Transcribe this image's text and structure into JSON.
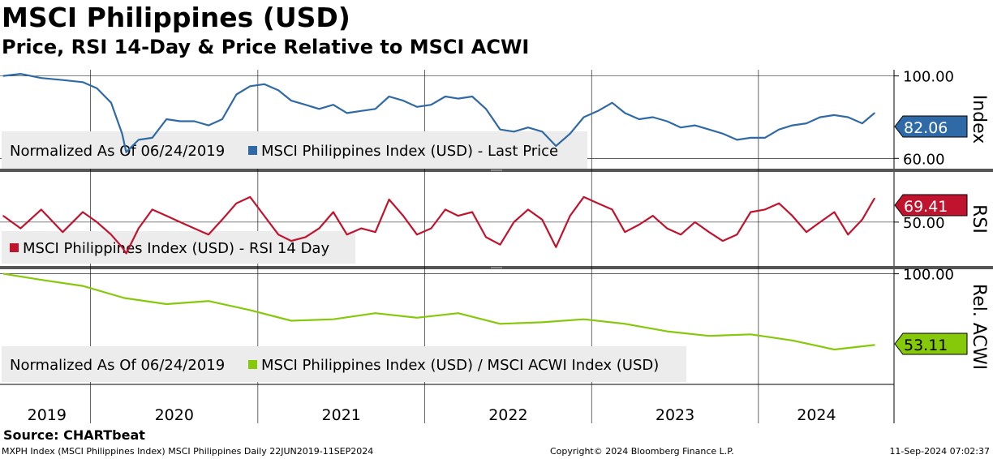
{
  "header": {
    "title": "MSCI Philippines (USD)",
    "subtitle": "Price, RSI 14-Day & Price Relative to MSCI ACWI"
  },
  "footer": {
    "source": "Source: CHARTbeat",
    "description": "MXPH Index (MSCI Philippines Index) MSCI Philippines  Daily 22JUN2019-11SEP2024",
    "copyright": "Copyright© 2024 Bloomberg Finance L.P.",
    "timestamp": "11-Sep-2024 07:02:37"
  },
  "colors": {
    "price": "#2f6aa6",
    "rsi": "#c0142e",
    "relative": "#86c80a",
    "grid": "#000000",
    "legend_bg": "#ececec",
    "panel_divider": "#555555"
  },
  "chart_data": [
    {
      "type": "line",
      "panel": "price",
      "axis_title": "Index",
      "legend_note": "Normalized As Of 06/24/2019",
      "series": [
        {
          "name": "MSCI Philippines Index (USD) - Last Price",
          "last_value_label": "82.06",
          "x": [
            "2019-06-24",
            "2019-08-01",
            "2019-09-15",
            "2019-11-01",
            "2019-12-15",
            "2020-01-15",
            "2020-02-15",
            "2020-03-10",
            "2020-03-19",
            "2020-04-15",
            "2020-05-15",
            "2020-06-15",
            "2020-07-15",
            "2020-08-15",
            "2020-09-15",
            "2020-10-15",
            "2020-11-15",
            "2020-12-15",
            "2021-01-15",
            "2021-02-15",
            "2021-03-15",
            "2021-04-15",
            "2021-05-15",
            "2021-06-15",
            "2021-07-15",
            "2021-08-15",
            "2021-09-15",
            "2021-10-15",
            "2021-11-15",
            "2021-12-15",
            "2022-01-15",
            "2022-02-15",
            "2022-03-15",
            "2022-04-15",
            "2022-05-15",
            "2022-06-15",
            "2022-07-15",
            "2022-08-15",
            "2022-09-15",
            "2022-10-15",
            "2022-11-15",
            "2022-12-15",
            "2023-01-15",
            "2023-02-15",
            "2023-03-15",
            "2023-04-15",
            "2023-05-15",
            "2023-06-15",
            "2023-07-15",
            "2023-08-15",
            "2023-09-15",
            "2023-10-15",
            "2023-11-15",
            "2023-12-15",
            "2024-01-15",
            "2024-02-15",
            "2024-03-15",
            "2024-04-15",
            "2024-05-15",
            "2024-06-15",
            "2024-07-15",
            "2024-08-15",
            "2024-09-11"
          ],
          "y": [
            100,
            101,
            99,
            98,
            97,
            94,
            87,
            72,
            63,
            69,
            70,
            79,
            78,
            78,
            76,
            79,
            91,
            95,
            96,
            93,
            88,
            86,
            84,
            86,
            82,
            83,
            84,
            90,
            88,
            85,
            86,
            90,
            89,
            90,
            84,
            74,
            73,
            75,
            73,
            66,
            72,
            80,
            83,
            87,
            82,
            79,
            80,
            78,
            75,
            76,
            74,
            72,
            69,
            70,
            70,
            74,
            76,
            77,
            80,
            81,
            80,
            77,
            82
          ]
        }
      ],
      "ylim": [
        55,
        103
      ],
      "y_ticks": [
        100,
        60
      ],
      "y_tick_labels": [
        "100.00",
        "60.00"
      ]
    },
    {
      "type": "line",
      "panel": "rsi",
      "axis_title": "RSI",
      "series": [
        {
          "name": "MSCI Philippines Index (USD) - RSI 14 Day",
          "last_value_label": "69.41",
          "x": [
            "2019-06-24",
            "2019-08-01",
            "2019-09-15",
            "2019-11-01",
            "2019-12-15",
            "2020-01-15",
            "2020-02-15",
            "2020-03-10",
            "2020-03-19",
            "2020-04-15",
            "2020-05-15",
            "2020-06-15",
            "2020-07-15",
            "2020-08-15",
            "2020-09-15",
            "2020-10-15",
            "2020-11-15",
            "2020-12-15",
            "2021-01-15",
            "2021-02-15",
            "2021-03-15",
            "2021-04-15",
            "2021-05-15",
            "2021-06-15",
            "2021-07-15",
            "2021-08-15",
            "2021-09-15",
            "2021-10-15",
            "2021-11-15",
            "2021-12-15",
            "2022-01-15",
            "2022-02-15",
            "2022-03-15",
            "2022-04-15",
            "2022-05-15",
            "2022-06-15",
            "2022-07-15",
            "2022-08-15",
            "2022-09-15",
            "2022-10-15",
            "2022-11-15",
            "2022-12-15",
            "2023-01-15",
            "2023-02-15",
            "2023-03-15",
            "2023-04-15",
            "2023-05-15",
            "2023-06-15",
            "2023-07-15",
            "2023-08-15",
            "2023-09-15",
            "2023-10-15",
            "2023-11-15",
            "2023-12-15",
            "2024-01-15",
            "2024-02-15",
            "2024-03-15",
            "2024-04-15",
            "2024-05-15",
            "2024-06-15",
            "2024-07-15",
            "2024-08-15",
            "2024-09-11"
          ],
          "y": [
            55,
            45,
            60,
            42,
            58,
            50,
            40,
            30,
            25,
            45,
            60,
            55,
            50,
            45,
            40,
            52,
            65,
            70,
            55,
            40,
            35,
            38,
            45,
            58,
            40,
            45,
            42,
            68,
            55,
            40,
            45,
            60,
            55,
            58,
            38,
            32,
            50,
            60,
            52,
            30,
            55,
            70,
            65,
            60,
            42,
            48,
            55,
            45,
            40,
            50,
            42,
            35,
            40,
            58,
            60,
            65,
            55,
            42,
            50,
            58,
            40,
            52,
            69
          ]
        }
      ],
      "ylim": [
        15,
        90
      ],
      "y_ticks": [
        50
      ],
      "y_tick_labels": [
        "50.00"
      ]
    },
    {
      "type": "line",
      "panel": "relative",
      "axis_title": "Rel. ACWI",
      "legend_note": "Normalized As Of 06/24/2019",
      "series": [
        {
          "name": "MSCI Philippines Index (USD) / MSCI ACWI Index (USD)",
          "last_value_label": "53.11",
          "x": [
            "2019-06-24",
            "2019-09-15",
            "2019-12-15",
            "2020-03-15",
            "2020-06-15",
            "2020-09-15",
            "2020-12-15",
            "2021-03-15",
            "2021-06-15",
            "2021-09-15",
            "2021-12-15",
            "2022-03-15",
            "2022-06-15",
            "2022-09-15",
            "2022-12-15",
            "2023-03-15",
            "2023-06-15",
            "2023-09-15",
            "2023-12-15",
            "2024-03-15",
            "2024-06-15",
            "2024-09-11"
          ],
          "y": [
            100,
            96,
            92,
            84,
            80,
            82,
            76,
            69,
            70,
            74,
            71,
            74,
            67,
            68,
            70,
            67,
            62,
            59,
            60,
            56,
            50,
            53
          ]
        }
      ],
      "ylim": [
        27,
        103
      ],
      "y_ticks": [
        100
      ],
      "y_tick_labels": [
        "100.00"
      ]
    }
  ],
  "x_axis": {
    "year_labels": [
      "2019",
      "2020",
      "2021",
      "2022",
      "2023",
      "2024"
    ]
  }
}
